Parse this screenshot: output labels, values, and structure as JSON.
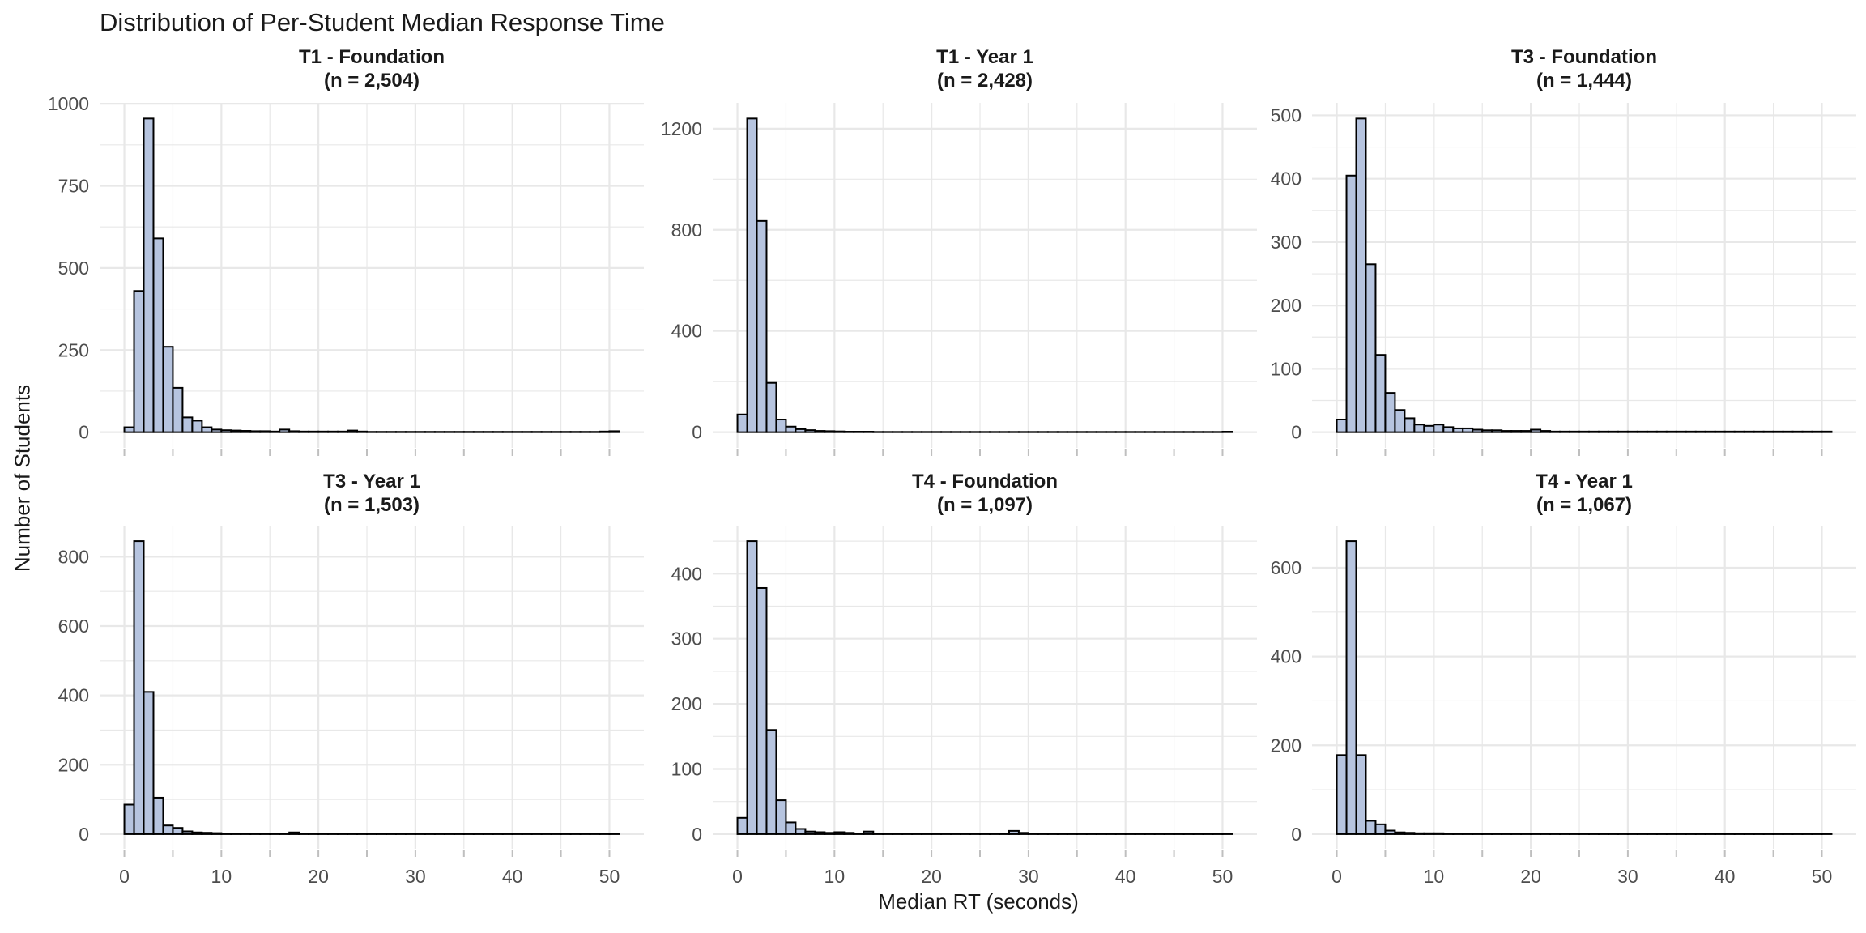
{
  "chart_data": {
    "type": "bar",
    "subtype": "faceted-histogram",
    "title": "Distribution of Per-Student Median Response Time",
    "xlabel": "Median RT (seconds)",
    "ylabel": "Number of Students",
    "bin_width_seconds": 1,
    "x_range": [
      0,
      51
    ],
    "xticks": [
      0,
      10,
      20,
      30,
      40,
      50
    ],
    "x_minor_gridlines": [
      5,
      15,
      25,
      35,
      45
    ],
    "grid": "major+minor, light gray on white",
    "legend": "none",
    "facets": [
      {
        "id": "t1-foundation",
        "title": "T1 - Foundation",
        "subtitle": "(n = 2,504)",
        "n": 2504,
        "yticks": [
          0,
          250,
          500,
          750,
          1000
        ],
        "peak_count": 955,
        "values": [
          15,
          430,
          955,
          590,
          260,
          135,
          45,
          35,
          15,
          8,
          6,
          5,
          4,
          3,
          3,
          2,
          8,
          3,
          2,
          2,
          2,
          2,
          2,
          5,
          2,
          1,
          1,
          1,
          1,
          1,
          1,
          1,
          1,
          1,
          1,
          1,
          1,
          1,
          1,
          1,
          1,
          1,
          1,
          1,
          1,
          1,
          1,
          1,
          1,
          2,
          3
        ]
      },
      {
        "id": "t1-year1",
        "title": "T1 - Year 1",
        "subtitle": "(n = 2,428)",
        "n": 2428,
        "yticks": [
          0,
          400,
          800,
          1200
        ],
        "peak_count": 1240,
        "values": [
          70,
          1240,
          835,
          195,
          50,
          22,
          12,
          8,
          5,
          4,
          3,
          2,
          2,
          2,
          1,
          1,
          1,
          1,
          1,
          1,
          1,
          1,
          1,
          1,
          1,
          1,
          1,
          1,
          1,
          1,
          1,
          1,
          1,
          1,
          1,
          1,
          1,
          1,
          1,
          1,
          1,
          1,
          1,
          1,
          1,
          1,
          1,
          1,
          1,
          1,
          2
        ]
      },
      {
        "id": "t3-foundation",
        "title": "T3 - Foundation",
        "subtitle": "(n = 1,444)",
        "n": 1444,
        "yticks": [
          0,
          100,
          200,
          300,
          400,
          500
        ],
        "peak_count": 495,
        "values": [
          20,
          405,
          495,
          265,
          122,
          62,
          35,
          22,
          12,
          10,
          12,
          8,
          6,
          6,
          4,
          3,
          3,
          2,
          2,
          2,
          4,
          2,
          1,
          1,
          1,
          1,
          1,
          1,
          1,
          1,
          1,
          1,
          1,
          1,
          1,
          1,
          1,
          1,
          1,
          1,
          1,
          1,
          1,
          1,
          1,
          1,
          1,
          1,
          1,
          1,
          1
        ]
      },
      {
        "id": "t3-year1",
        "title": "T3 - Year 1",
        "subtitle": "(n = 1,503)",
        "n": 1503,
        "yticks": [
          0,
          200,
          400,
          600,
          800
        ],
        "peak_count": 845,
        "values": [
          85,
          845,
          410,
          105,
          25,
          18,
          8,
          5,
          4,
          3,
          2,
          2,
          2,
          1,
          1,
          1,
          1,
          5,
          1,
          1,
          1,
          1,
          1,
          1,
          1,
          1,
          1,
          1,
          1,
          1,
          1,
          1,
          1,
          1,
          1,
          1,
          1,
          1,
          1,
          1,
          1,
          1,
          1,
          1,
          1,
          1,
          1,
          1,
          1,
          1,
          1
        ]
      },
      {
        "id": "t4-foundation",
        "title": "T4 - Foundation",
        "subtitle": "(n = 1,097)",
        "n": 1097,
        "yticks": [
          0,
          100,
          200,
          300,
          400
        ],
        "peak_count": 450,
        "values": [
          25,
          450,
          378,
          160,
          52,
          18,
          8,
          4,
          3,
          2,
          3,
          2,
          1,
          4,
          1,
          1,
          1,
          1,
          1,
          1,
          1,
          1,
          1,
          1,
          1,
          1,
          1,
          1,
          5,
          2,
          1,
          1,
          1,
          1,
          1,
          1,
          1,
          1,
          1,
          1,
          1,
          1,
          1,
          1,
          1,
          1,
          1,
          1,
          1,
          1,
          1
        ]
      },
      {
        "id": "t4-year1",
        "title": "T4 - Year 1",
        "subtitle": "(n = 1,067)",
        "n": 1067,
        "yticks": [
          0,
          200,
          400,
          600
        ],
        "peak_count": 660,
        "values": [
          178,
          660,
          178,
          30,
          22,
          8,
          4,
          3,
          2,
          2,
          2,
          1,
          1,
          1,
          1,
          1,
          1,
          1,
          1,
          1,
          1,
          1,
          1,
          1,
          1,
          1,
          1,
          1,
          1,
          1,
          1,
          1,
          1,
          1,
          1,
          1,
          1,
          1,
          1,
          1,
          1,
          1,
          1,
          1,
          1,
          1,
          1,
          1,
          1,
          1,
          1
        ]
      }
    ],
    "colors": {
      "background": "#ffffff",
      "bar_fill": "#b6c4df",
      "bar_stroke": "#000000",
      "gridline": "#e8e8e8",
      "tick_mark": "#bfbfbf",
      "tick_label_text": "#4d4d4d",
      "title_text": "#1a1a1a"
    }
  }
}
